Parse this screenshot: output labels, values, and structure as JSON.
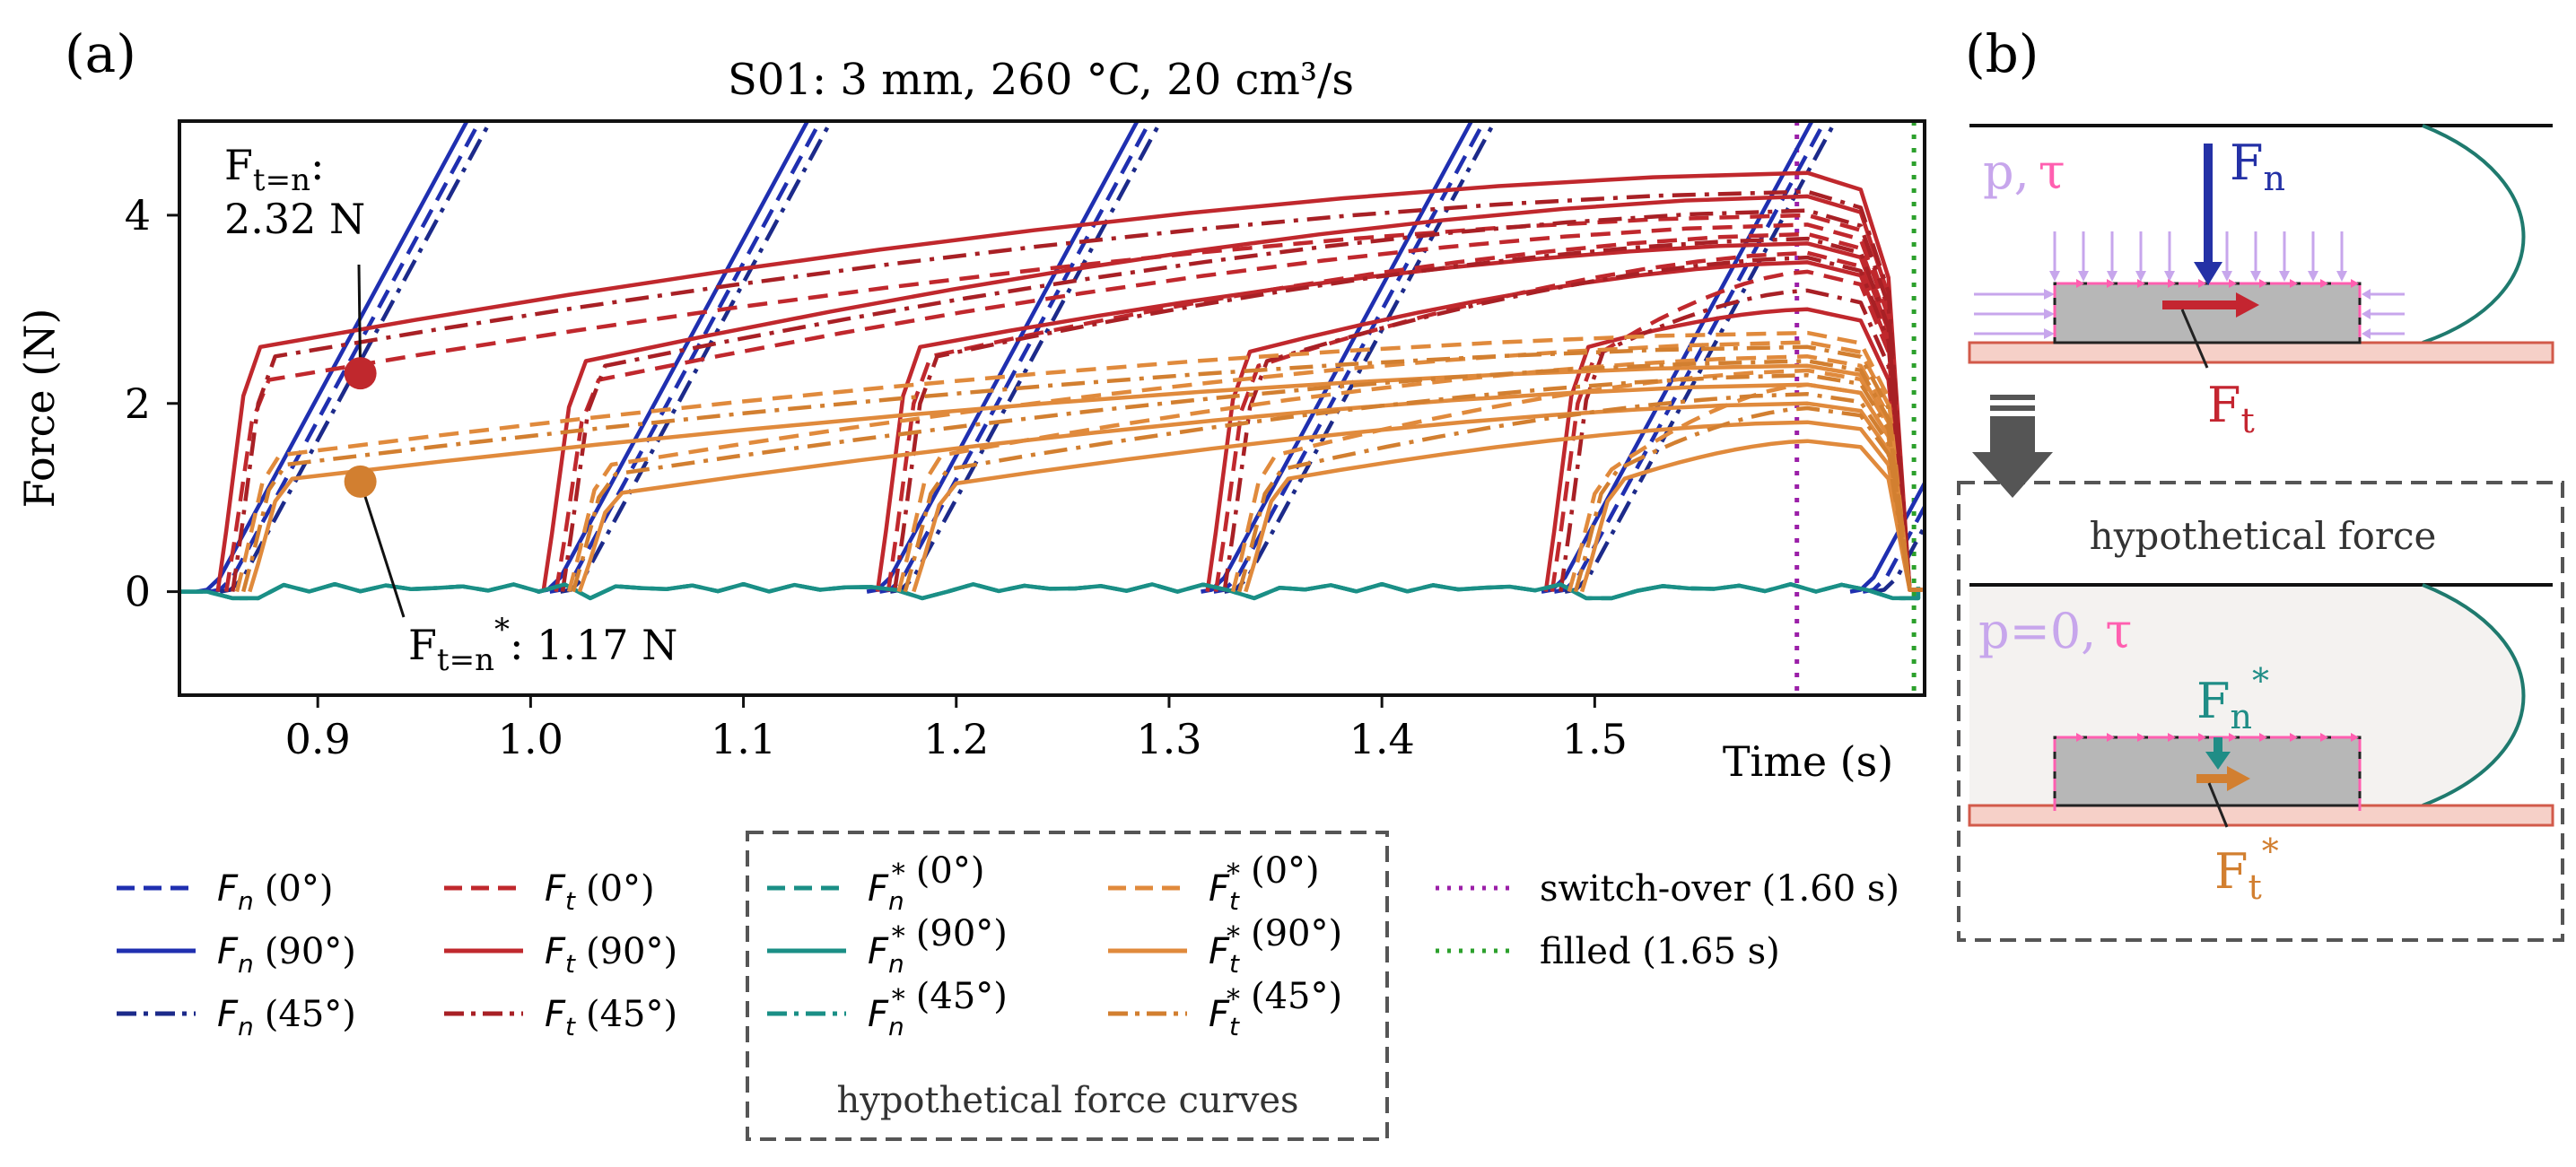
{
  "panel_a_label": "(a)",
  "panel_b_label": "(b)",
  "chart_data": {
    "type": "line",
    "title": "S01: 3 mm, 260 °C, 20 cm³/s",
    "ylabel": "Force (N)",
    "xlabel": "Time (s)",
    "xlim": [
      0.835,
      1.655
    ],
    "ylim": [
      -1.1,
      5.0
    ],
    "xticks": [
      0.9,
      1.0,
      1.1,
      1.2,
      1.3,
      1.4,
      1.5
    ],
    "xtick_labels": [
      "0.9",
      "1.0",
      "1.1",
      "1.2",
      "1.3",
      "1.4",
      "1.5"
    ],
    "yticks": [
      0,
      2,
      4
    ],
    "ytick_labels": [
      "0",
      "2",
      "4"
    ],
    "grid": false,
    "events": [
      {
        "name": "switch-over",
        "x": 1.595,
        "color": "#9b1fa8",
        "label": "switch-over (1.60 s)"
      },
      {
        "name": "filled",
        "x": 1.65,
        "color": "#2ca02c",
        "label": "filled (1.65 s)"
      }
    ],
    "cycle_starts": [
      0.848,
      1.008,
      1.163,
      1.32,
      1.48,
      1.625
    ],
    "fn_slope_per_s": 41,
    "series": [
      {
        "name": "Fn (0°)",
        "quantity": "Fn",
        "angle": "0°",
        "style": "dash",
        "color": "#1f2fb0",
        "curve": "normal",
        "offset": 0.006
      },
      {
        "name": "Fn (90°)",
        "quantity": "Fn",
        "angle": "90°",
        "style": "solid",
        "color": "#1f2fb0",
        "curve": "normal",
        "offset": 0.0
      },
      {
        "name": "Fn (45°)",
        "quantity": "Fn",
        "angle": "45°",
        "style": "dashdot",
        "color": "#1c2a8a",
        "curve": "normal",
        "offset": 0.011
      },
      {
        "name": "Ft (0°)",
        "quantity": "Ft",
        "angle": "0°",
        "style": "dash",
        "color": "#c0282d",
        "curve": "tangential",
        "starts": [
          0.857,
          1.012,
          1.168,
          1.322,
          1.48
        ],
        "steps": [
          2.25,
          2.25,
          2.5,
          2.4,
          2.5
        ],
        "peaks": [
          4.0,
          3.9,
          3.8,
          3.6,
          3.4
        ]
      },
      {
        "name": "Ft (90°)",
        "quantity": "Ft",
        "angle": "90°",
        "style": "solid",
        "color": "#c0282d",
        "curve": "tangential",
        "starts": [
          0.853,
          1.006,
          1.163,
          1.318,
          1.477
        ],
        "steps": [
          2.6,
          2.45,
          2.6,
          2.55,
          2.6
        ],
        "peaks": [
          4.45,
          4.2,
          3.7,
          3.5,
          3.0
        ]
      },
      {
        "name": "Ft (45°)",
        "quantity": "Ft",
        "angle": "45°",
        "style": "dashdot",
        "color": "#a82025",
        "curve": "tangential",
        "starts": [
          0.86,
          1.015,
          1.171,
          1.326,
          1.484
        ],
        "steps": [
          2.5,
          2.4,
          2.5,
          2.45,
          2.55
        ],
        "peaks": [
          4.25,
          4.05,
          3.75,
          3.55,
          3.2
        ]
      },
      {
        "name": "F*n (0°)",
        "quantity": "F*n",
        "angle": "0°",
        "style": "dash",
        "color": "#1a8f86",
        "curve": "zero"
      },
      {
        "name": "F*n (90°)",
        "quantity": "F*n",
        "angle": "90°",
        "style": "solid",
        "color": "#1a8f86",
        "curve": "zero"
      },
      {
        "name": "F*n (45°)",
        "quantity": "F*n",
        "angle": "45°",
        "style": "dashdot",
        "color": "#1a8f86",
        "curve": "zero"
      },
      {
        "name": "F*t (0°)",
        "quantity": "F*t",
        "angle": "0°",
        "style": "dash",
        "color": "#e08a3c",
        "curve": "tangential",
        "starts": [
          0.862,
          1.018,
          1.173,
          1.33,
          1.488
        ],
        "steps": [
          1.45,
          1.35,
          1.45,
          1.45,
          1.3
        ],
        "peaks": [
          2.75,
          2.65,
          2.5,
          2.35,
          2.2
        ]
      },
      {
        "name": "F*t (90°)",
        "quantity": "F*t",
        "angle": "90°",
        "style": "solid",
        "color": "#e08a3c",
        "curve": "tangential",
        "starts": [
          0.868,
          1.023,
          1.18,
          1.336,
          1.494
        ],
        "steps": [
          1.2,
          1.05,
          1.15,
          1.2,
          1.2
        ],
        "peaks": [
          2.4,
          2.2,
          2.0,
          1.8,
          1.6
        ]
      },
      {
        "name": "F*t (45°)",
        "quantity": "F*t",
        "angle": "45°",
        "style": "dashdot",
        "color": "#d27f30",
        "curve": "tangential",
        "starts": [
          0.865,
          1.02,
          1.176,
          1.333,
          1.491
        ],
        "steps": [
          1.35,
          1.25,
          1.3,
          1.3,
          1.3
        ],
        "peaks": [
          2.6,
          2.45,
          2.3,
          2.1,
          1.95
        ]
      }
    ],
    "annotations": [
      {
        "name": "ft-marker",
        "x": 0.92,
        "y": 2.32,
        "color": "#c0282d",
        "line1": "Ft=n:",
        "line2": "2.32 N"
      },
      {
        "name": "ftstar-marker",
        "x": 0.92,
        "y": 1.17,
        "color": "#d27f30",
        "line1": "Ft=n*: 1.17 N"
      }
    ],
    "legend": {
      "col1": [
        {
          "sym": "F",
          "sub": "n",
          "star": false,
          "angle": "(0°)",
          "style": "dash",
          "color": "#1f2fb0"
        },
        {
          "sym": "F",
          "sub": "n",
          "star": false,
          "angle": "(90°)",
          "style": "solid",
          "color": "#1f2fb0"
        },
        {
          "sym": "F",
          "sub": "n",
          "star": false,
          "angle": "(45°)",
          "style": "dashdot",
          "color": "#1c2a8a"
        }
      ],
      "col2": [
        {
          "sym": "F",
          "sub": "t",
          "star": false,
          "angle": "(0°)",
          "style": "dash",
          "color": "#c0282d"
        },
        {
          "sym": "F",
          "sub": "t",
          "star": false,
          "angle": "(90°)",
          "style": "solid",
          "color": "#c0282d"
        },
        {
          "sym": "F",
          "sub": "t",
          "star": false,
          "angle": "(45°)",
          "style": "dashdot",
          "color": "#a82025"
        }
      ],
      "col3": [
        {
          "sym": "F",
          "sub": "n",
          "star": true,
          "angle": "(0°)",
          "style": "dash",
          "color": "#1a8f86"
        },
        {
          "sym": "F",
          "sub": "n",
          "star": true,
          "angle": "(90°)",
          "style": "solid",
          "color": "#1a8f86"
        },
        {
          "sym": "F",
          "sub": "n",
          "star": true,
          "angle": "(45°)",
          "style": "dashdot",
          "color": "#1a8f86"
        }
      ],
      "col4": [
        {
          "sym": "F",
          "sub": "t",
          "star": true,
          "angle": "(0°)",
          "style": "dash",
          "color": "#e08a3c"
        },
        {
          "sym": "F",
          "sub": "t",
          "star": true,
          "angle": "(90°)",
          "style": "solid",
          "color": "#e08a3c"
        },
        {
          "sym": "F",
          "sub": "t",
          "star": true,
          "angle": "(45°)",
          "style": "dashdot",
          "color": "#d27f30"
        }
      ],
      "col5": [
        {
          "label": "switch-over (1.60 s)",
          "color": "#9b1fa8"
        },
        {
          "label": "filled (1.65 s)",
          "color": "#2ca02c"
        }
      ],
      "group_caption": "hypothetical force curves"
    }
  },
  "diagram": {
    "top": {
      "p_tau": {
        "p": "p,",
        "tau": "τ"
      },
      "fn": {
        "base": "F",
        "sub": "n"
      },
      "ft": {
        "base": "F",
        "sub": "t"
      }
    },
    "bottom": {
      "title": "hypothetical force",
      "p_tau": {
        "p": "p=0,",
        "tau": "τ"
      },
      "fn": {
        "base": "F",
        "sub": "n",
        "sup": "*"
      },
      "ft": {
        "base": "F",
        "sub": "t",
        "sup": "*"
      }
    },
    "colors": {
      "pressure": "#c7a6ec",
      "shear": "#ff5fb0",
      "fn": "#2431a6",
      "ft": "#c42530",
      "fnstar": "#1f8d86",
      "ftstar": "#d27f30",
      "wall": "#f6d0c8",
      "wall_edge": "#d25a4a",
      "part": "#b7b7b7",
      "profile": "#1f7a6e",
      "arrow": "#555555"
    }
  }
}
